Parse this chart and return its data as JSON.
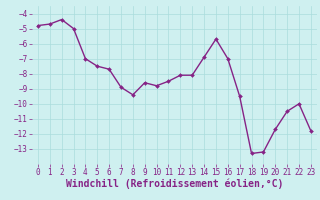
{
  "x": [
    0,
    1,
    2,
    3,
    4,
    5,
    6,
    7,
    8,
    9,
    10,
    11,
    12,
    13,
    14,
    15,
    16,
    17,
    18,
    19,
    20,
    21,
    22,
    23
  ],
  "y": [
    -4.8,
    -4.7,
    -4.4,
    -5.0,
    -7.0,
    -7.5,
    -7.7,
    -8.9,
    -9.4,
    -8.6,
    -8.8,
    -8.5,
    -8.1,
    -8.1,
    -6.9,
    -5.7,
    -7.0,
    -9.5,
    -13.3,
    -13.2,
    -11.7,
    -10.5,
    -10.0,
    -11.8
  ],
  "line_color": "#862386",
  "marker": "D",
  "marker_size": 2,
  "line_width": 1.0,
  "xlabel": "Windchill (Refroidissement éolien,°C)",
  "xlabel_fontsize": 7,
  "ylim": [
    -14,
    -3.5
  ],
  "xlim": [
    -0.5,
    23.5
  ],
  "yticks": [
    -13,
    -12,
    -11,
    -10,
    -9,
    -8,
    -7,
    -6,
    -5,
    -4
  ],
  "xticks": [
    0,
    1,
    2,
    3,
    4,
    5,
    6,
    7,
    8,
    9,
    10,
    11,
    12,
    13,
    14,
    15,
    16,
    17,
    18,
    19,
    20,
    21,
    22,
    23
  ],
  "bg_color": "#cff0f0",
  "grid_color": "#aadddd",
  "tick_color": "#862386",
  "tick_fontsize": 5.5,
  "label_fontsize": 7
}
